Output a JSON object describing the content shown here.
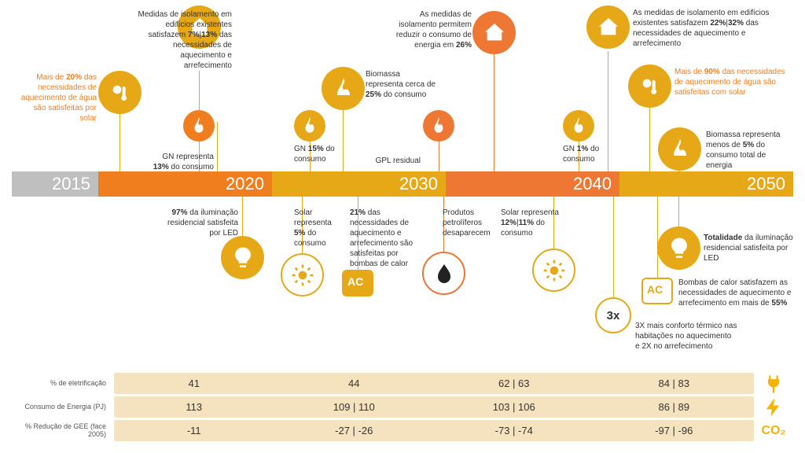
{
  "timeline": {
    "years": [
      "2015",
      "2020",
      "2030",
      "2040",
      "2050"
    ]
  },
  "table": {
    "labels": [
      "% de eletrificação",
      "Consumo de Energia (PJ)",
      "% Redução de GEE (face 2005)"
    ],
    "rows": [
      [
        "41",
        "44",
        "62 | 63",
        "84 | 83"
      ],
      [
        "113",
        "109 | 110",
        "103 | 106",
        "86 | 89"
      ],
      [
        "-11",
        "-27 | -26",
        "-73 | -74",
        "-97 | -96"
      ]
    ],
    "icon_co2": "CO₂"
  },
  "notes": {
    "t1": "Mais de <b>20%</b> das necessidades de aquecimento de água são satisfeitas por solar",
    "t2": "Medidas de isolamento em edifícios existentes satisfazem <b>7%</b>|<b>13%</b> das necessidades de aquecimento e arrefecimento",
    "t3": "GN representa <b>13%</b> do consumo",
    "t4": "GN <b>15%</b> do consumo",
    "t5": "Biomassa representa cerca de <b>25%</b> do consumo",
    "t6": "As medidas de isolamento permitem reduzir o consumo de energia em <b>26%</b>",
    "t7": "GPL residual",
    "t8": "GN <b>1%</b> do consumo",
    "t9": "As medidas de isolamento em edifícios existentes satisfazem <b>22%</b>|<b>32%</b> das necessidades de aquecimento e arrefecimento",
    "t10": "Mais de <b>90%</b> das necessidades de aquecimento de água são satisfeitas com solar",
    "t11": "Biomassa representa menos de <b>5%</b> do consumo total de energia",
    "b1": "<b>97%</b> da iluminação residencial satisfeita por LED",
    "b2": "Solar representa <b>5%</b> do consumo",
    "b3": "<b>21%</b> das necessidades de aquecimento e arrefecimento são satisfeitas por bombas de calor",
    "b4": "Produtos petrolíferos desaparecem",
    "b5": "Solar representa <b>12%</b>|<b>11%</b> do consumo",
    "b6": "<b>Totalidade</b> da iluminação residencial satisfeita por LED",
    "b7": "Bombas de calor satisfazem as necessidades de aquecimento e arrefecimento em mais de <b>55%</b>",
    "b8": "3X mais conforto térmico nas habitações no aquecimento e 2X no arrefecimento",
    "ac": "AC",
    "x3": "3x"
  },
  "colors": {
    "orange": "#f07d1e",
    "amber": "#e6a817",
    "dkorange": "#ed7733"
  }
}
